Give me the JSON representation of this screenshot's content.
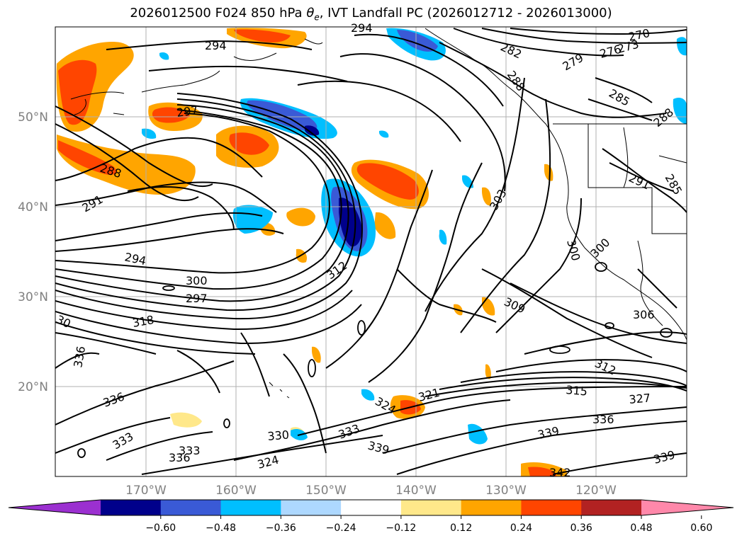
{
  "title": {
    "prefix": "2026012500 F024 850 hPa ",
    "theta": "θ",
    "theta_sub": "e",
    "suffix": ", IVT Landfall PC (2026012712 - 2026013000)"
  },
  "axes": {
    "lat_labels": [
      "50°N",
      "40°N",
      "30°N",
      "20°N"
    ],
    "lon_labels": [
      "170°W",
      "160°W",
      "150°W",
      "140°W",
      "130°W",
      "120°W"
    ]
  },
  "colorbar": {
    "ticks": [
      "−0.60",
      "−0.48",
      "−0.36",
      "−0.24",
      "−0.12",
      "0.12",
      "0.24",
      "0.36",
      "0.48",
      "0.60"
    ],
    "colors": [
      "#9b30d0",
      "#00008b",
      "#3a5ad6",
      "#00bfff",
      "#add8ff",
      "#ffffff",
      "#ffe88a",
      "#ffa500",
      "#ff4500",
      "#b22222",
      "#ff88aa"
    ]
  },
  "contour_labels": [
    "294",
    "294",
    "282",
    "270",
    "273",
    "276",
    "279",
    "288",
    "285",
    "288",
    "297",
    "288",
    "291",
    "291",
    "285",
    "303",
    "294",
    "300",
    "297",
    "300",
    "300",
    "312",
    "318",
    "309",
    "306",
    "30",
    "336",
    "312",
    "336",
    "315",
    "321",
    "324",
    "327",
    "333",
    "330",
    "333",
    "339",
    "336",
    "339",
    "333",
    "336",
    "324",
    "339",
    "342"
  ]
}
